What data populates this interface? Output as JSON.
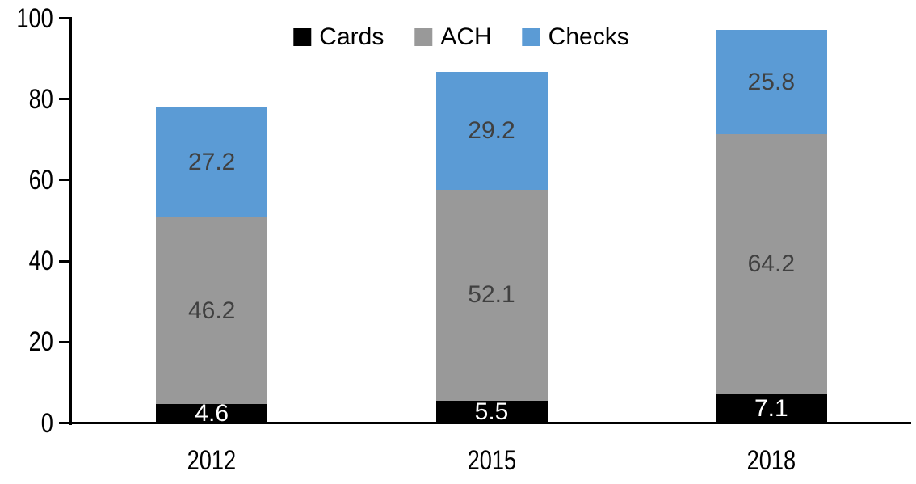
{
  "chart_data": {
    "type": "bar",
    "stacked": true,
    "title": "",
    "categories": [
      "2012",
      "2015",
      "2018"
    ],
    "series": [
      {
        "name": "Cards",
        "values": [
          4.6,
          5.5,
          7.1
        ],
        "color": "#000000",
        "label_color": "#FFFFFF"
      },
      {
        "name": "ACH",
        "values": [
          46.2,
          52.1,
          64.2
        ],
        "color": "#999999",
        "label_color": "#404040"
      },
      {
        "name": "Checks",
        "values": [
          27.2,
          29.2,
          25.8
        ],
        "color": "#5B9BD5",
        "label_color": "#404040"
      }
    ],
    "y_axis": {
      "ticks": [
        "0",
        "20",
        "40",
        "60",
        "80",
        "100"
      ],
      "tick_values": [
        0,
        20,
        40,
        60,
        80,
        100
      ],
      "ylim": [
        0,
        100
      ]
    },
    "xlabel": "",
    "ylabel": "",
    "grid": false,
    "legend": {
      "position": "top-center",
      "entries": [
        "Cards",
        "ACH",
        "Checks"
      ]
    },
    "colors": {
      "background": "#FFFFFF",
      "axis": "#000000",
      "cards": "#000000",
      "ach": "#999999",
      "checks": "#5B9BD5",
      "label_on_dark": "#FFFFFF",
      "label_on_light": "#404040"
    }
  }
}
